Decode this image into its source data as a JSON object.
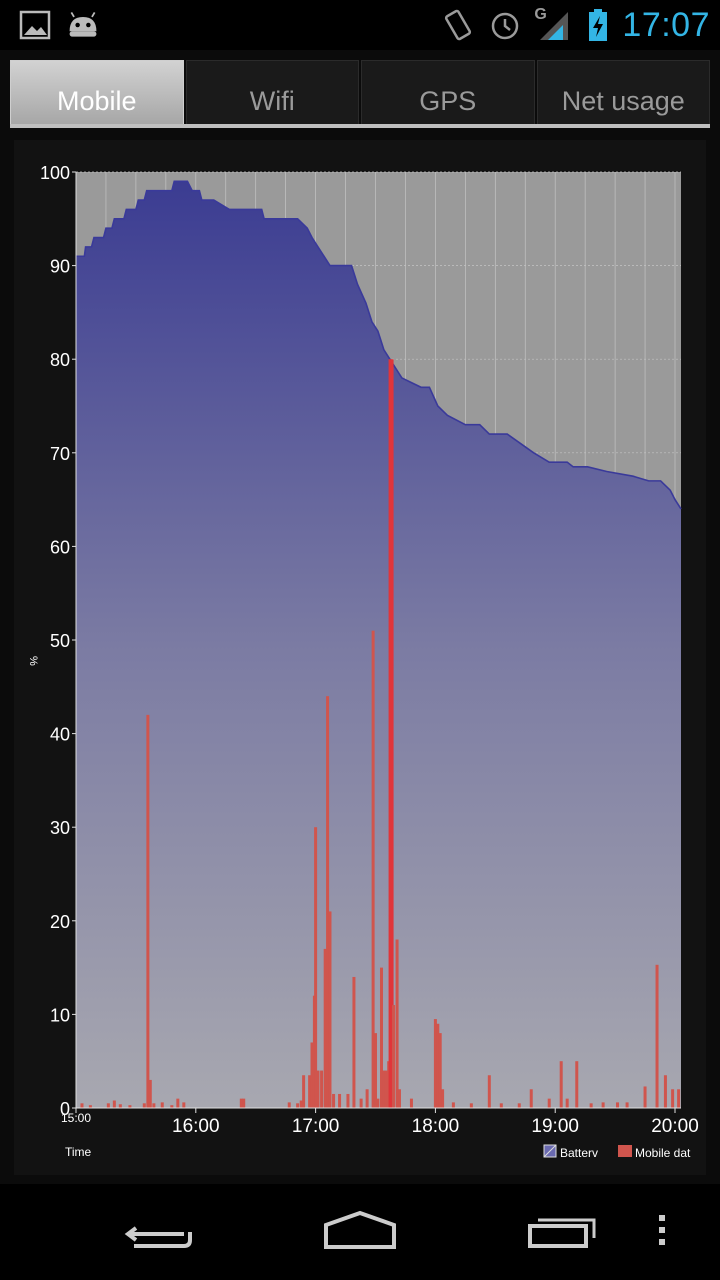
{
  "status_bar": {
    "time": "17:07",
    "network_type": "G",
    "left_icons": [
      "image-icon",
      "android-icon"
    ],
    "right_icons": [
      "vibrate-icon",
      "alarm-icon",
      "signal-icon",
      "battery-charging-icon"
    ],
    "accent_color": "#33b5e5"
  },
  "tabs": [
    {
      "label": "Mobile",
      "active": true
    },
    {
      "label": "Wifi",
      "active": false
    },
    {
      "label": "GPS",
      "active": false
    },
    {
      "label": "Net usage",
      "active": false
    }
  ],
  "chart_data": {
    "type": "area",
    "ylabel": "%",
    "xlabel": "Time",
    "ylim": [
      0,
      100
    ],
    "xlim": [
      15.0,
      20.05
    ],
    "x_unit": "hour of day",
    "y_ticks": [
      0,
      10,
      20,
      30,
      40,
      50,
      60,
      70,
      80,
      90,
      100
    ],
    "x_ticks": [
      {
        "value": 15.0,
        "label": "15:00"
      },
      {
        "value": 16.0,
        "label": "16:00"
      },
      {
        "value": 17.0,
        "label": "17:00"
      },
      {
        "value": 18.0,
        "label": "18:00"
      },
      {
        "value": 19.0,
        "label": "19:00"
      },
      {
        "value": 20.0,
        "label": "20:00"
      }
    ],
    "grid": true,
    "legend_position": "bottom-right",
    "series": [
      {
        "name": "Battery",
        "kind": "area",
        "color": "#3a3a9a",
        "points": [
          [
            15.0,
            91
          ],
          [
            15.07,
            91
          ],
          [
            15.08,
            92
          ],
          [
            15.13,
            92
          ],
          [
            15.15,
            93
          ],
          [
            15.23,
            93
          ],
          [
            15.25,
            94
          ],
          [
            15.3,
            94
          ],
          [
            15.32,
            95
          ],
          [
            15.4,
            95
          ],
          [
            15.42,
            96
          ],
          [
            15.5,
            96
          ],
          [
            15.52,
            97
          ],
          [
            15.57,
            97
          ],
          [
            15.59,
            98
          ],
          [
            15.8,
            98
          ],
          [
            15.82,
            99
          ],
          [
            15.93,
            99
          ],
          [
            15.97,
            98
          ],
          [
            16.03,
            98
          ],
          [
            16.05,
            97
          ],
          [
            16.15,
            97
          ],
          [
            16.28,
            96
          ],
          [
            16.55,
            96
          ],
          [
            16.57,
            95
          ],
          [
            16.85,
            95
          ],
          [
            16.93,
            94
          ],
          [
            16.97,
            93
          ],
          [
            17.02,
            92
          ],
          [
            17.07,
            91
          ],
          [
            17.12,
            90
          ],
          [
            17.17,
            90
          ],
          [
            17.2,
            90
          ],
          [
            17.3,
            90
          ],
          [
            17.35,
            88
          ],
          [
            17.42,
            86
          ],
          [
            17.47,
            84
          ],
          [
            17.52,
            83
          ],
          [
            17.57,
            81
          ],
          [
            17.62,
            80
          ],
          [
            17.67,
            79
          ],
          [
            17.72,
            78
          ],
          [
            17.8,
            77.5
          ],
          [
            17.88,
            77
          ],
          [
            17.95,
            77
          ],
          [
            18.02,
            75
          ],
          [
            18.1,
            74
          ],
          [
            18.25,
            73
          ],
          [
            18.37,
            73
          ],
          [
            18.45,
            72
          ],
          [
            18.6,
            72
          ],
          [
            18.82,
            70
          ],
          [
            18.95,
            69
          ],
          [
            19.1,
            69
          ],
          [
            19.15,
            68.5
          ],
          [
            19.27,
            68.5
          ],
          [
            19.43,
            68
          ],
          [
            19.65,
            67.5
          ],
          [
            19.78,
            67
          ],
          [
            19.88,
            67
          ],
          [
            19.96,
            66
          ],
          [
            20.0,
            65
          ],
          [
            20.05,
            64
          ]
        ]
      },
      {
        "name": "Mobile data",
        "kind": "bar",
        "color": "#d0554d",
        "bars": [
          [
            15.05,
            0.5
          ],
          [
            15.12,
            0.3
          ],
          [
            15.27,
            0.5
          ],
          [
            15.32,
            0.8
          ],
          [
            15.37,
            0.4
          ],
          [
            15.45,
            0.3
          ],
          [
            15.57,
            0.5
          ],
          [
            15.6,
            42
          ],
          [
            15.62,
            3
          ],
          [
            15.65,
            0.5
          ],
          [
            15.72,
            0.6
          ],
          [
            15.8,
            0.3
          ],
          [
            15.85,
            1
          ],
          [
            15.9,
            0.6
          ],
          [
            16.38,
            1
          ],
          [
            16.4,
            1
          ],
          [
            16.78,
            0.6
          ],
          [
            16.85,
            0.5
          ],
          [
            16.88,
            0.8
          ],
          [
            16.9,
            3.5
          ],
          [
            16.95,
            3.5
          ],
          [
            16.97,
            7
          ],
          [
            16.99,
            12
          ],
          [
            17.0,
            30
          ],
          [
            17.02,
            4
          ],
          [
            17.05,
            4
          ],
          [
            17.08,
            17
          ],
          [
            17.1,
            44
          ],
          [
            17.12,
            21
          ],
          [
            17.15,
            1.5
          ],
          [
            17.2,
            1.5
          ],
          [
            17.27,
            1.5
          ],
          [
            17.32,
            14
          ],
          [
            17.38,
            1
          ],
          [
            17.43,
            2
          ],
          [
            17.48,
            51
          ],
          [
            17.5,
            8
          ],
          [
            17.52,
            1
          ],
          [
            17.55,
            15
          ],
          [
            17.57,
            4
          ],
          [
            17.59,
            4
          ],
          [
            17.61,
            5
          ],
          [
            17.63,
            80
          ],
          [
            17.65,
            11
          ],
          [
            17.68,
            18
          ],
          [
            17.7,
            2
          ],
          [
            17.8,
            1
          ],
          [
            18.0,
            9.5
          ],
          [
            18.02,
            9
          ],
          [
            18.04,
            8
          ],
          [
            18.06,
            2
          ],
          [
            18.15,
            0.6
          ],
          [
            18.3,
            0.5
          ],
          [
            18.45,
            3.5
          ],
          [
            18.55,
            0.5
          ],
          [
            18.7,
            0.5
          ],
          [
            18.8,
            2
          ],
          [
            18.95,
            1
          ],
          [
            19.05,
            5
          ],
          [
            19.1,
            1
          ],
          [
            19.18,
            5
          ],
          [
            19.3,
            0.5
          ],
          [
            19.4,
            0.6
          ],
          [
            19.52,
            0.6
          ],
          [
            19.6,
            0.6
          ],
          [
            19.75,
            2.3
          ],
          [
            19.85,
            15.3
          ],
          [
            19.92,
            3.5
          ],
          [
            19.98,
            2
          ],
          [
            20.03,
            2
          ]
        ]
      }
    ]
  },
  "legend": [
    {
      "label": "Battery",
      "shown_text": "Batterv",
      "color": "#6a6ab0"
    },
    {
      "label": "Mobile data",
      "shown_text": "Mobile dat",
      "color": "#d0554d"
    }
  ],
  "nav_bar": {
    "buttons": [
      "back-icon",
      "home-icon",
      "recent-apps-icon",
      "overflow-menu-icon"
    ]
  }
}
